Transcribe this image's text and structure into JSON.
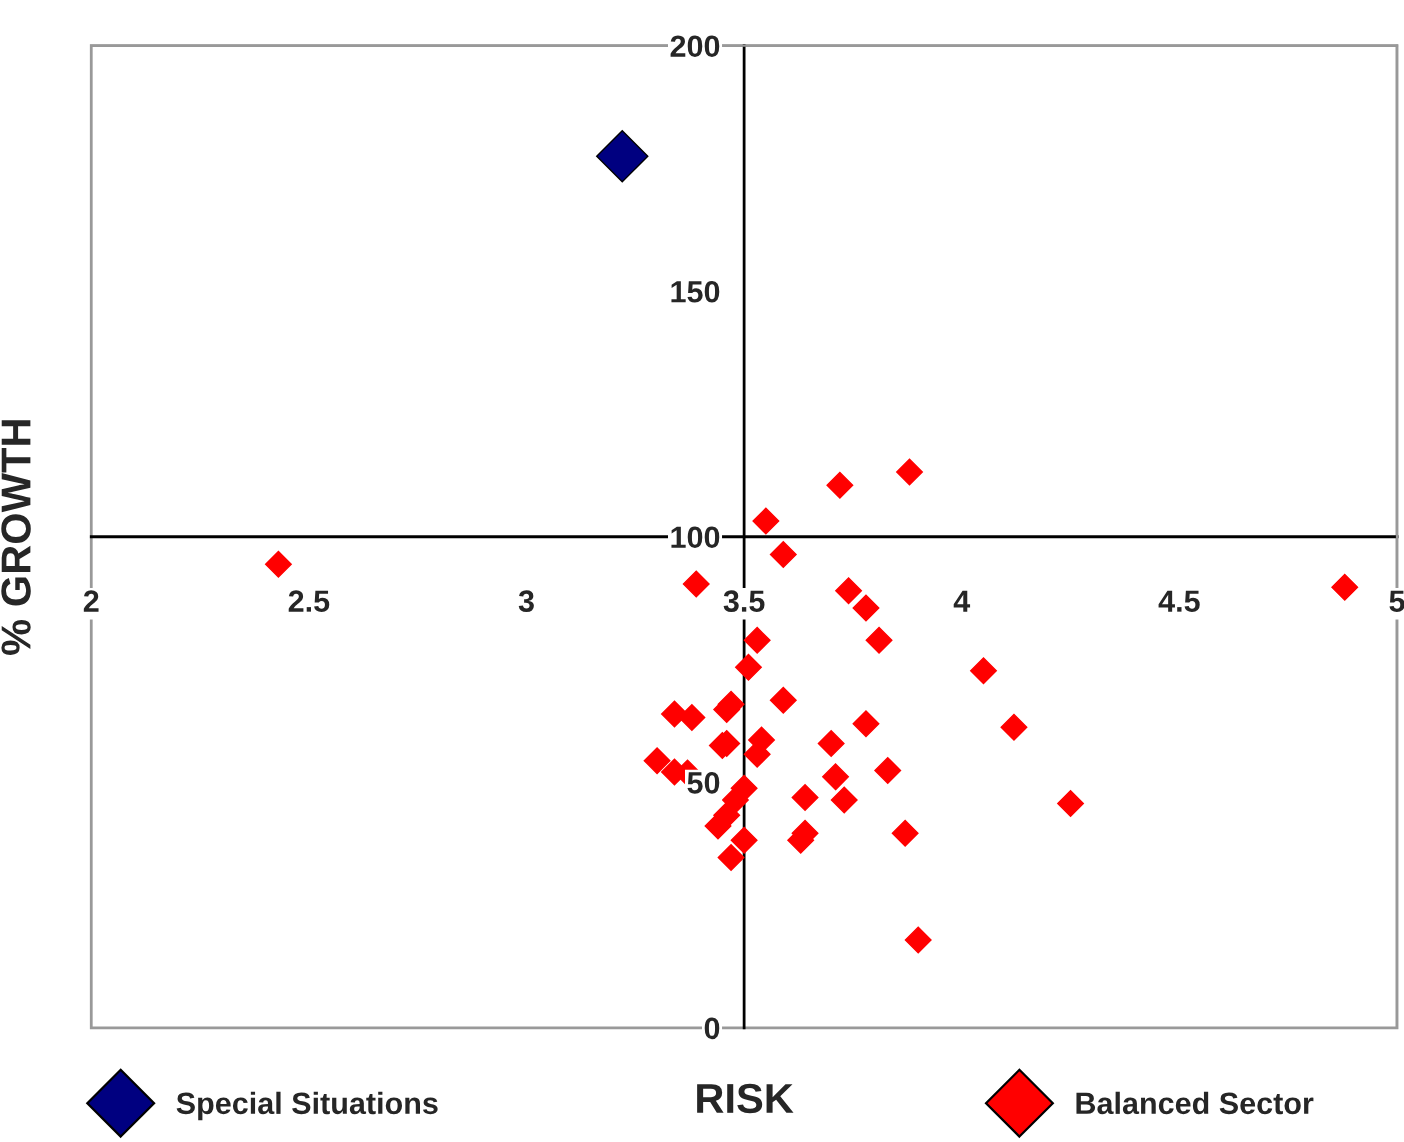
{
  "chart_data": {
    "type": "scatter",
    "xlabel": "RISK",
    "ylabel": "% GROWTH",
    "xlim": [
      2,
      5
    ],
    "ylim": [
      0,
      200
    ],
    "xticks": [
      2,
      2.5,
      3,
      3.5,
      4,
      4.5,
      5
    ],
    "yticks": [
      0,
      50,
      100,
      150,
      200
    ],
    "marker": "diamond",
    "grid": false,
    "legend": "bottom",
    "series": [
      {
        "name": "Special Situations",
        "color": "#000080",
        "x": [
          3.22
        ],
        "values": [
          177.5
        ]
      },
      {
        "name": "Balanced Sector",
        "color": "#ff0000",
        "x": [
          2.43,
          3.39,
          3.55,
          3.72,
          3.88,
          3.59,
          3.74,
          3.78,
          3.81,
          3.53,
          3.51,
          4.05,
          3.59,
          3.34,
          3.38,
          3.46,
          3.47,
          3.78,
          4.12,
          3.45,
          3.46,
          3.54,
          3.53,
          3.7,
          3.3,
          3.34,
          3.37,
          3.71,
          3.83,
          3.5,
          3.48,
          3.64,
          3.73,
          4.25,
          3.46,
          3.44,
          3.5,
          3.64,
          3.63,
          3.87,
          3.47,
          3.9,
          4.88
        ],
        "values": [
          94.4,
          90.4,
          103.2,
          110.5,
          113.2,
          96.4,
          89.0,
          85.5,
          78.9,
          78.9,
          73.4,
          72.7,
          66.7,
          63.9,
          63.2,
          64.8,
          65.9,
          61.9,
          61.2,
          57.5,
          57.9,
          58.6,
          55.7,
          57.9,
          54.4,
          52.1,
          51.9,
          51.1,
          52.4,
          48.8,
          46.4,
          46.9,
          46.4,
          45.7,
          43.3,
          41.1,
          38.2,
          39.6,
          38.2,
          39.6,
          34.7,
          17.9,
          89.7
        ]
      }
    ]
  }
}
